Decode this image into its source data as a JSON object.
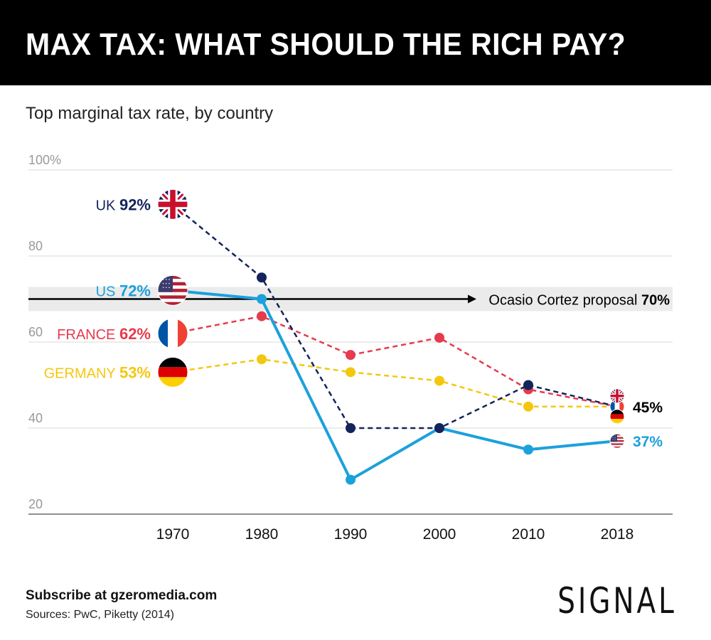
{
  "header": {
    "title": "MAX TAX: WHAT SHOULD THE RICH PAY?",
    "subtitle": "Top marginal tax rate, by country"
  },
  "footer": {
    "cta": "Subscribe at gzeromedia.com",
    "sources": "Sources: PwC, Piketty (2014)",
    "logo": "SIGNAL"
  },
  "colors": {
    "uk": "#13245a",
    "us": "#1ba1dc",
    "france": "#e63b4d",
    "germany": "#f4c70f",
    "reference": "#000000",
    "grid": "#d9d9d9",
    "tick_text": "#999999"
  },
  "chart_data": {
    "type": "line",
    "x": [
      "1970",
      "1980",
      "1990",
      "2000",
      "2010",
      "2018"
    ],
    "ylim": [
      20,
      100
    ],
    "y_ticks": [
      "100%",
      "80",
      "60",
      "40",
      "20"
    ],
    "grid": true,
    "series": [
      {
        "key": "uk",
        "name": "UK",
        "start_label": "92%",
        "style": "dashed",
        "values": [
          92,
          75,
          40,
          40,
          50,
          45
        ],
        "flag_icon": "uk-flag-icon"
      },
      {
        "key": "us",
        "name": "US",
        "start_label": "72%",
        "style": "solid",
        "values": [
          72,
          70,
          28,
          40,
          35,
          37
        ],
        "flag_icon": "us-flag-icon"
      },
      {
        "key": "france",
        "name": "FRANCE",
        "start_label": "62%",
        "style": "dashed",
        "values": [
          62,
          66,
          57,
          61,
          49,
          45
        ],
        "flag_icon": "france-flag-icon"
      },
      {
        "key": "germany",
        "name": "GERMANY",
        "start_label": "53%",
        "style": "dashed",
        "values": [
          53,
          56,
          53,
          51,
          45,
          45
        ],
        "flag_icon": "germany-flag-icon"
      }
    ],
    "reference_line": {
      "value": 70,
      "label": "Ocasio Cortez proposal",
      "value_label": "70%"
    },
    "end_labels": [
      {
        "text": "45%",
        "value": 45,
        "series": [
          "uk",
          "france",
          "germany"
        ]
      },
      {
        "text": "37%",
        "value": 37,
        "series": [
          "us"
        ]
      }
    ]
  }
}
